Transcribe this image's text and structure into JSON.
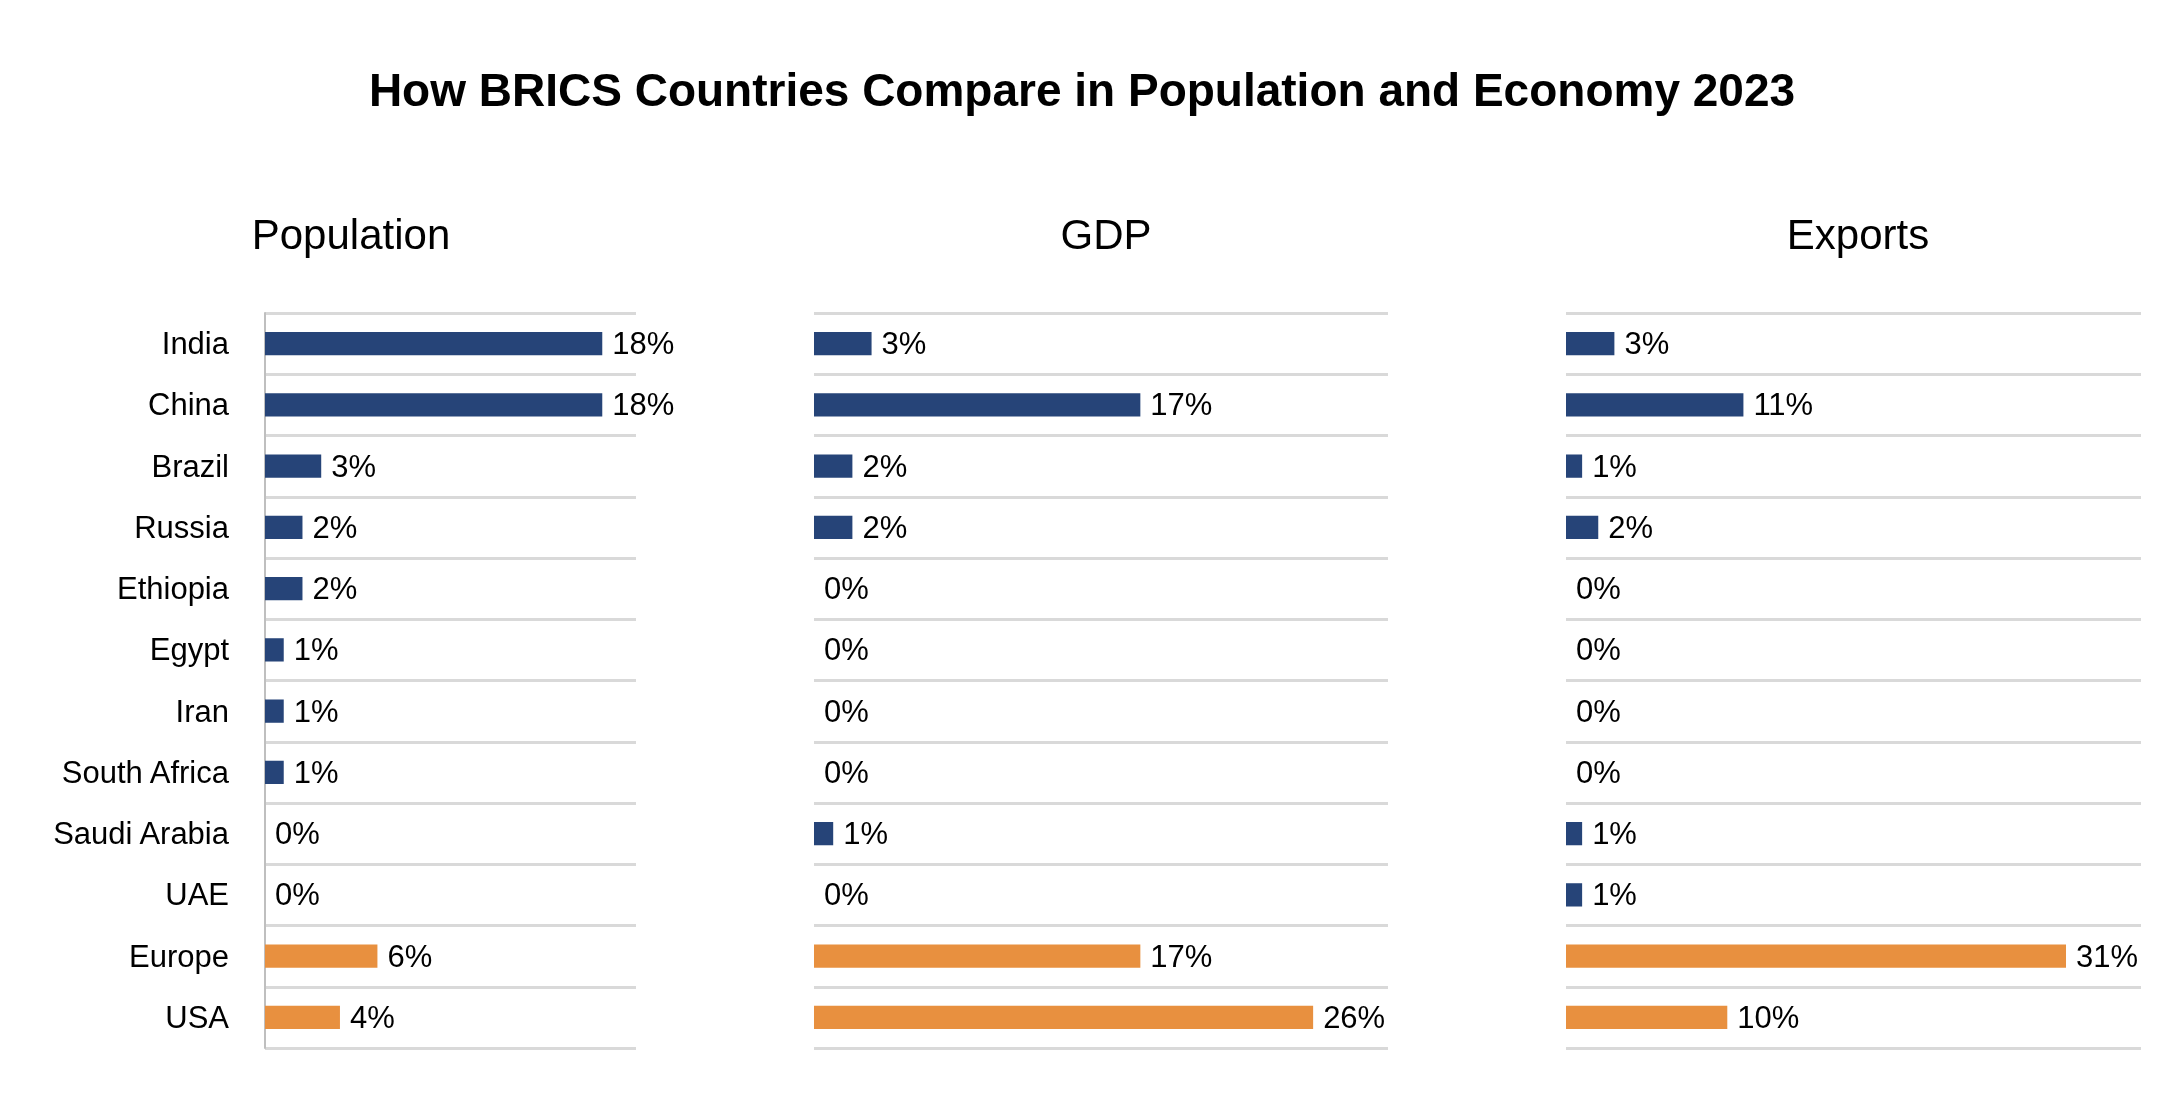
{
  "chart_data": [
    {
      "type": "other",
      "title": "How BRICS Countries Compare in Population and Economy 2023"
    },
    {
      "type": "bar",
      "orientation": "horizontal",
      "title": "Population",
      "categories": [
        "India",
        "China",
        "Brazil",
        "Russia",
        "Ethiopia",
        "Egypt",
        "Iran",
        "South Africa",
        "Saudi Arabia",
        "UAE",
        "Europe",
        "USA"
      ],
      "values": [
        18,
        18,
        3,
        2,
        2,
        1,
        1,
        1,
        0,
        0,
        6,
        4
      ],
      "value_labels": [
        "18%",
        "18%",
        "3%",
        "2%",
        "2%",
        "1%",
        "1%",
        "1%",
        "0%",
        "0%",
        "6%",
        "4%"
      ],
      "colors": [
        "#264478",
        "#264478",
        "#264478",
        "#264478",
        "#264478",
        "#264478",
        "#264478",
        "#264478",
        "#264478",
        "#264478",
        "#e8903f",
        "#e8903f"
      ],
      "grid": "y",
      "tick_labels": "y"
    },
    {
      "type": "bar",
      "orientation": "horizontal",
      "title": "GDP",
      "categories": [
        null,
        null,
        null,
        null,
        null,
        null,
        null,
        null,
        null,
        null,
        null,
        null
      ],
      "values": [
        3,
        17,
        2,
        2,
        0,
        0,
        0,
        0,
        1,
        0,
        17,
        26
      ],
      "value_labels": [
        "3%",
        "17%",
        "2%",
        "2%",
        "0%",
        "0%",
        "0%",
        "0%",
        "1%",
        "0%",
        "17%",
        "26%"
      ],
      "colors": [
        "#264478",
        "#264478",
        "#264478",
        "#264478",
        "#264478",
        "#264478",
        "#264478",
        "#264478",
        "#264478",
        "#264478",
        "#e8903f",
        "#e8903f"
      ],
      "grid": "y",
      "tick_labels": false
    },
    {
      "type": "bar",
      "orientation": "horizontal",
      "title": "Exports",
      "categories": [
        null,
        null,
        null,
        null,
        null,
        null,
        null,
        null,
        null,
        null,
        null,
        null
      ],
      "values": [
        3,
        11,
        1,
        2,
        0,
        0,
        0,
        0,
        1,
        1,
        31,
        10
      ],
      "value_labels": [
        "3%",
        "11%",
        "1%",
        "2%",
        "0%",
        "0%",
        "0%",
        "0%",
        "1%",
        "1%",
        "31%",
        "10%"
      ],
      "colors": [
        "#264478",
        "#264478",
        "#264478",
        "#264478",
        "#264478",
        "#264478",
        "#264478",
        "#264478",
        "#264478",
        "#264478",
        "#e8903f",
        "#e8903f"
      ],
      "grid": "y",
      "tick_labels": false
    }
  ]
}
